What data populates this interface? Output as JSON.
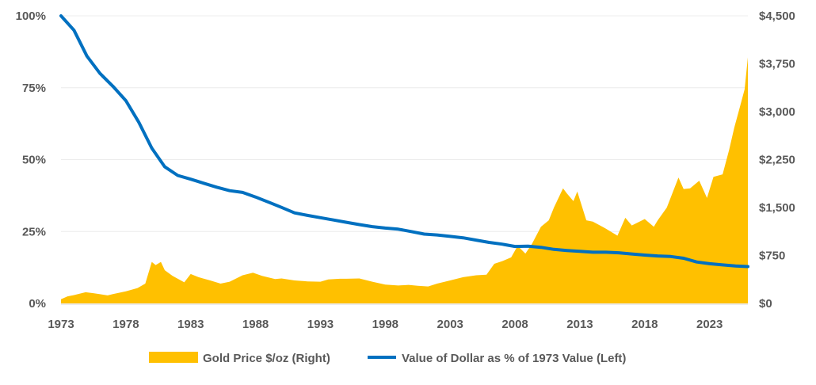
{
  "chart_data": {
    "type": "area+line",
    "title": "",
    "x_ticks": [
      "1973",
      "1978",
      "1983",
      "1988",
      "1993",
      "1998",
      "2003",
      "2008",
      "2013",
      "2018",
      "2023"
    ],
    "xlim": [
      1973,
      2025.95
    ],
    "y_left": {
      "ticks": [
        "0%",
        "25%",
        "50%",
        "75%",
        "100%"
      ],
      "range": [
        0,
        100
      ]
    },
    "y_right": {
      "ticks": [
        "$0",
        "$750",
        "$1,500",
        "$2,250",
        "$3,000",
        "$3,750",
        "$4,500"
      ],
      "range": [
        0,
        4500
      ]
    },
    "grid": true,
    "legend_position": "bottom",
    "series": [
      {
        "name": "Gold Price $/oz (Right)",
        "type": "area",
        "axis": "right",
        "color": "#FFC000",
        "x": [
          1973,
          1973.5,
          1974,
          1974.9,
          1975.5,
          1976.6,
          1977,
          1978,
          1978.9,
          1979.5,
          1980.0,
          1980.3,
          1980.7,
          1981,
          1981.6,
          1982.5,
          1983,
          1983.6,
          1984.5,
          1985.3,
          1986,
          1987,
          1987.8,
          1988.5,
          1989.5,
          1990,
          1991,
          1992,
          1993,
          1993.6,
          1994.5,
          1995,
          1996,
          1997,
          1998,
          1999,
          1999.8,
          2000.5,
          2001.3,
          2002,
          2003,
          2004,
          2005,
          2005.8,
          2006.4,
          2007,
          2007.7,
          2008.2,
          2008.8,
          2009.3,
          2010,
          2010.6,
          2011,
          2011.7,
          2012,
          2012.5,
          2012.8,
          2013.5,
          2014,
          2015,
          2015.9,
          2016.5,
          2017,
          2018,
          2018.7,
          2019,
          2019.7,
          2020.6,
          2021,
          2021.5,
          2022.2,
          2022.8,
          2023.3,
          2024,
          2024.5,
          2024.9,
          2025.3,
          2025.7,
          2025.95
        ],
        "values": [
          65,
          110,
          130,
          175,
          160,
          125,
          145,
          190,
          240,
          310,
          650,
          600,
          650,
          520,
          430,
          330,
          460,
          410,
          360,
          310,
          340,
          440,
          480,
          430,
          380,
          390,
          360,
          345,
          340,
          375,
          385,
          385,
          390,
          340,
          295,
          280,
          290,
          275,
          265,
          310,
          360,
          410,
          440,
          450,
          620,
          660,
          720,
          900,
          780,
          930,
          1200,
          1300,
          1500,
          1800,
          1720,
          1600,
          1750,
          1300,
          1280,
          1170,
          1060,
          1340,
          1220,
          1320,
          1200,
          1300,
          1500,
          1970,
          1790,
          1800,
          1920,
          1650,
          1980,
          2020,
          2400,
          2750,
          3050,
          3350,
          3850
        ]
      },
      {
        "name": "Value of Dollar as % of 1973 Value (Left)",
        "type": "line",
        "axis": "left",
        "color": "#0070C0",
        "x": [
          1973,
          1974,
          1975,
          1976,
          1977,
          1978,
          1979,
          1980,
          1981,
          1982,
          1983,
          1984,
          1985,
          1986,
          1987,
          1988,
          1989,
          1990,
          1991,
          1992,
          1993,
          1994,
          1995,
          1996,
          1997,
          1998,
          1999,
          2000,
          2001,
          2002,
          2003,
          2004,
          2005,
          2006,
          2007,
          2008,
          2009,
          2010,
          2011,
          2012,
          2013,
          2014,
          2015,
          2016,
          2017,
          2018,
          2019,
          2020,
          2021,
          2022,
          2023,
          2024,
          2025,
          2025.95
        ],
        "values": [
          100,
          95,
          86,
          80,
          75.5,
          70.5,
          63,
          54,
          47.5,
          44.5,
          43.2,
          41.8,
          40.4,
          39.2,
          38.6,
          37,
          35.2,
          33.4,
          31.5,
          30.6,
          29.8,
          29,
          28.2,
          27.4,
          26.7,
          26.2,
          25.8,
          25,
          24.1,
          23.8,
          23.3,
          22.8,
          22,
          21.2,
          20.6,
          19.8,
          19.9,
          19.5,
          18.8,
          18.4,
          18.1,
          17.8,
          17.8,
          17.6,
          17.2,
          16.8,
          16.5,
          16.3,
          15.7,
          14.4,
          13.8,
          13.4,
          13.0,
          12.8
        ]
      }
    ]
  }
}
